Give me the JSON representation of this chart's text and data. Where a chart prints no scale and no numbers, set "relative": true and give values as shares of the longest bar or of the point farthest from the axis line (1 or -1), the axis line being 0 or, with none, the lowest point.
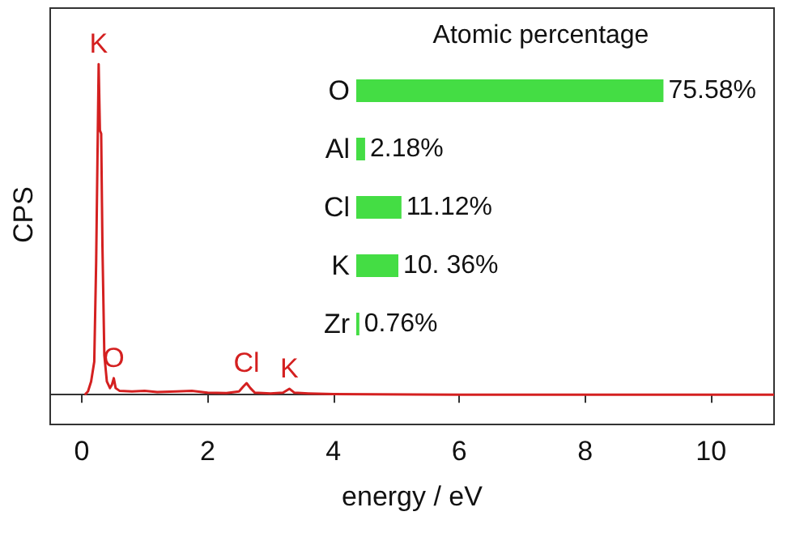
{
  "chart_data": [
    {
      "type": "line",
      "relative": true,
      "xlabel": "energy / eV",
      "ylabel": "CPS",
      "xlim": [
        -0.5,
        11
      ],
      "xticks": [
        0,
        2,
        4,
        6,
        8,
        10
      ],
      "marker": "none",
      "x": [
        0.05,
        0.1,
        0.15,
        0.2,
        0.23,
        0.25,
        0.27,
        0.29,
        0.31,
        0.33,
        0.36,
        0.4,
        0.45,
        0.48,
        0.51,
        0.54,
        0.6,
        0.8,
        1.0,
        1.2,
        1.5,
        1.75,
        2.0,
        2.3,
        2.5,
        2.57,
        2.62,
        2.68,
        2.75,
        3.0,
        3.2,
        3.3,
        3.38,
        3.6,
        4.0,
        6,
        11
      ],
      "series": [
        {
          "color": "#d42020",
          "values": [
            0,
            0.01,
            0.04,
            0.1,
            0.4,
            0.7,
            1.0,
            0.8,
            0.79,
            0.45,
            0.12,
            0.04,
            0.02,
            0.03,
            0.05,
            0.02,
            0.012,
            0.01,
            0.012,
            0.008,
            0.01,
            0.012,
            0.006,
            0.005,
            0.01,
            0.025,
            0.035,
            0.02,
            0.006,
            0.004,
            0.006,
            0.018,
            0.006,
            0.004,
            0.002,
            0,
            0
          ]
        }
      ],
      "annotations": [
        {
          "text": "K",
          "x": 0.27,
          "y": 1.0
        },
        {
          "text": "O",
          "x": 0.51,
          "y": 0.05
        },
        {
          "text": "Cl",
          "x": 2.62,
          "y": 0.035
        },
        {
          "text": "K",
          "x": 3.3,
          "y": 0.018
        }
      ]
    },
    {
      "type": "bar",
      "orientation": "horizontal",
      "title": "Atomic percentage",
      "color": "#44dd44",
      "categories": [
        "O",
        "Al",
        "Cl",
        "K",
        "Zr"
      ],
      "values": [
        75.58,
        2.18,
        11.12,
        10.36,
        0.76
      ],
      "value_labels": [
        "75.58%",
        "2.18%",
        "11.12%",
        "10. 36%",
        "0.76%"
      ]
    }
  ]
}
